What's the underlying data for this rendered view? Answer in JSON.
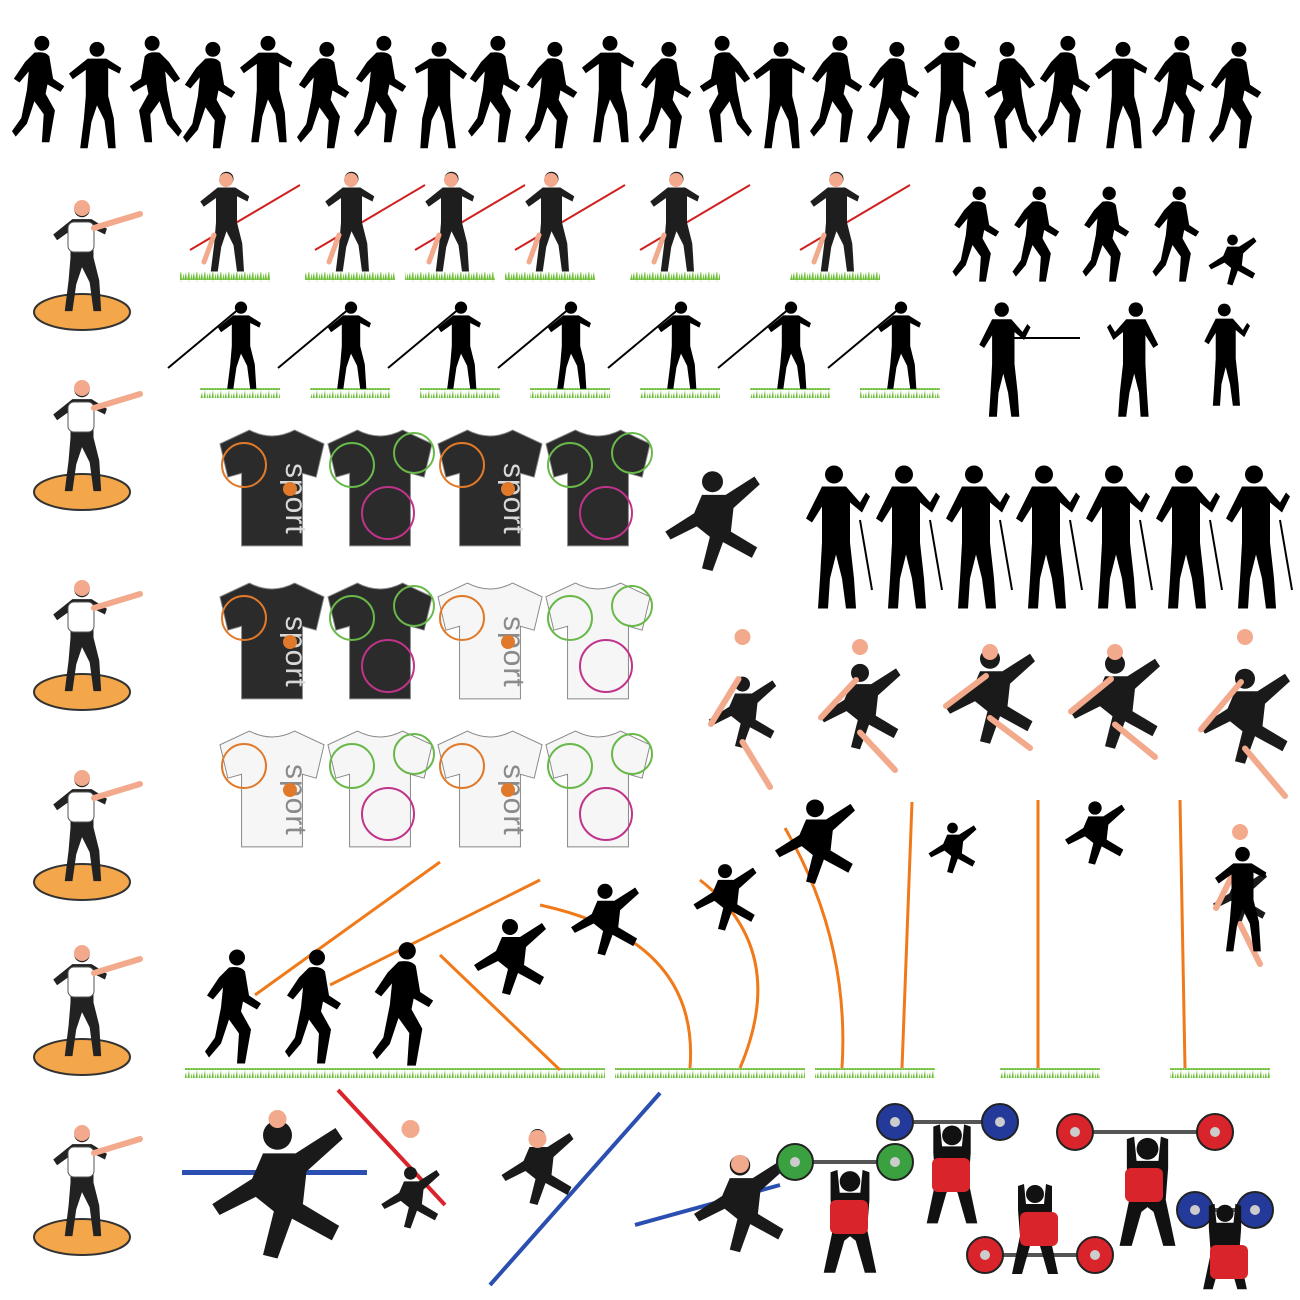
{
  "image": {
    "description_tag": "sports-silhouettes-collage",
    "background": "#ffffff"
  },
  "colors": {
    "silhouette": "#000000",
    "skin": "#f2a98c",
    "skin_shadow": "#d98b6e",
    "disc_platform": "#f4a64a",
    "disc_platform_edge": "#333333",
    "grass": "#6fbf3a",
    "grass_light": "#a8dc6e",
    "javelin": "#d02020",
    "pole_orange": "#f07a1a",
    "bar_blue": "#2a4fb0",
    "bar_red": "#d8242a",
    "plate_red": "#d8242a",
    "plate_blue": "#243a9a",
    "plate_green": "#3aa040",
    "plate_yellow": "#f2c21a",
    "shirt_dark": "#2b2b2b",
    "shirt_white": "#f6f6f6",
    "ball_orange": "#e07a2a",
    "ball_green": "#69b84a",
    "ball_pink": "#c0338a",
    "ball_gray": "#9a9a9a"
  },
  "shirts": {
    "word": "sport",
    "rows": [
      [
        {
          "base": "dark",
          "accent": "orange",
          "print": true
        },
        {
          "base": "dark",
          "accent": "green",
          "print": false
        },
        {
          "base": "dark",
          "accent": "orange",
          "print": true
        },
        {
          "base": "dark",
          "accent": "green",
          "print": false
        }
      ],
      [
        {
          "base": "dark",
          "accent": "orange",
          "print": true
        },
        {
          "base": "dark",
          "accent": "green",
          "print": false
        },
        {
          "base": "white",
          "accent": "orange",
          "print": true
        },
        {
          "base": "white",
          "accent": "green",
          "print": false
        }
      ],
      [
        {
          "base": "white",
          "accent": "orange",
          "print": true
        },
        {
          "base": "white",
          "accent": "green",
          "print": false
        },
        {
          "base": "white",
          "accent": "orange",
          "print": true
        },
        {
          "base": "white",
          "accent": "green",
          "print": false
        }
      ]
    ]
  },
  "groups": {
    "runners": 22,
    "discus_throwers": 6,
    "javelin_color_row": 6,
    "javelin_silhouette_row": 7,
    "fencers": 7,
    "long_jumpers": 6,
    "pole_vault_sequence": 11,
    "high_jumpers": 3,
    "weightlifters": 4
  },
  "icons": [
    "runner-silhouette",
    "discus-thrower",
    "javelin-thrower",
    "fencer",
    "jumper",
    "pole-vaulter",
    "weightlifter",
    "tshirt-icon",
    "barbell-icon"
  ]
}
